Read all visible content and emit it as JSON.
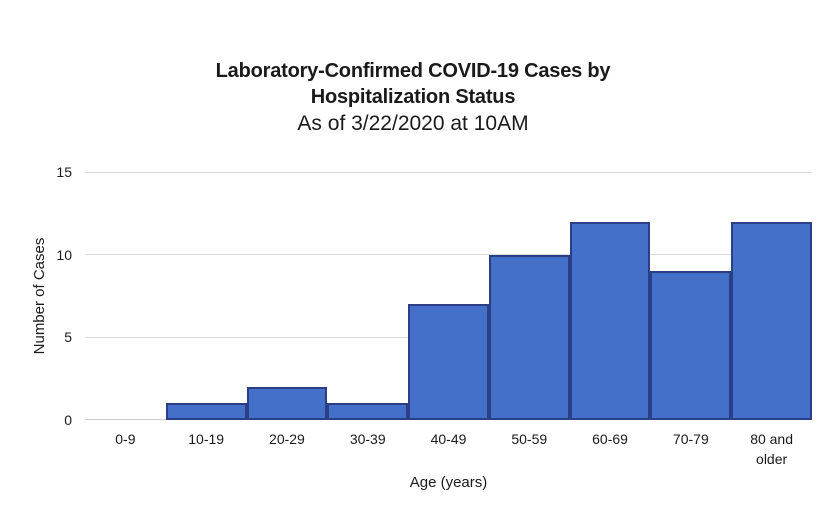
{
  "title": {
    "line1": "Laboratory-Confirmed COVID-19 Cases by",
    "line2": "Hospitalization Status",
    "subtitle": "As of 3/22/2020 at 10AM"
  },
  "chart_data": {
    "type": "bar",
    "style": "histogram-adjacent-bars",
    "title": "Laboratory-Confirmed COVID-19 Cases by Hospitalization Status",
    "subtitle": "As of 3/22/2020 at 10AM",
    "categories": [
      "0-9",
      "10-19",
      "20-29",
      "30-39",
      "40-49",
      "50-59",
      "60-69",
      "70-79",
      "80 and older"
    ],
    "values": [
      0,
      1,
      2,
      1,
      7,
      10,
      12,
      9,
      12
    ],
    "xlabel": "Age (years)",
    "ylabel": "Number of Cases",
    "ylim": [
      0,
      15
    ],
    "yticks": [
      0,
      5,
      10,
      15
    ],
    "grid": true,
    "legend": false,
    "colors": {
      "bar_fill": "#4470C9",
      "bar_border": "#2B3F87",
      "gridline": "#D9D9D9",
      "axis_line": "#CCCCCC",
      "text": "#1A1A1A",
      "background": "#FFFFFF"
    }
  }
}
